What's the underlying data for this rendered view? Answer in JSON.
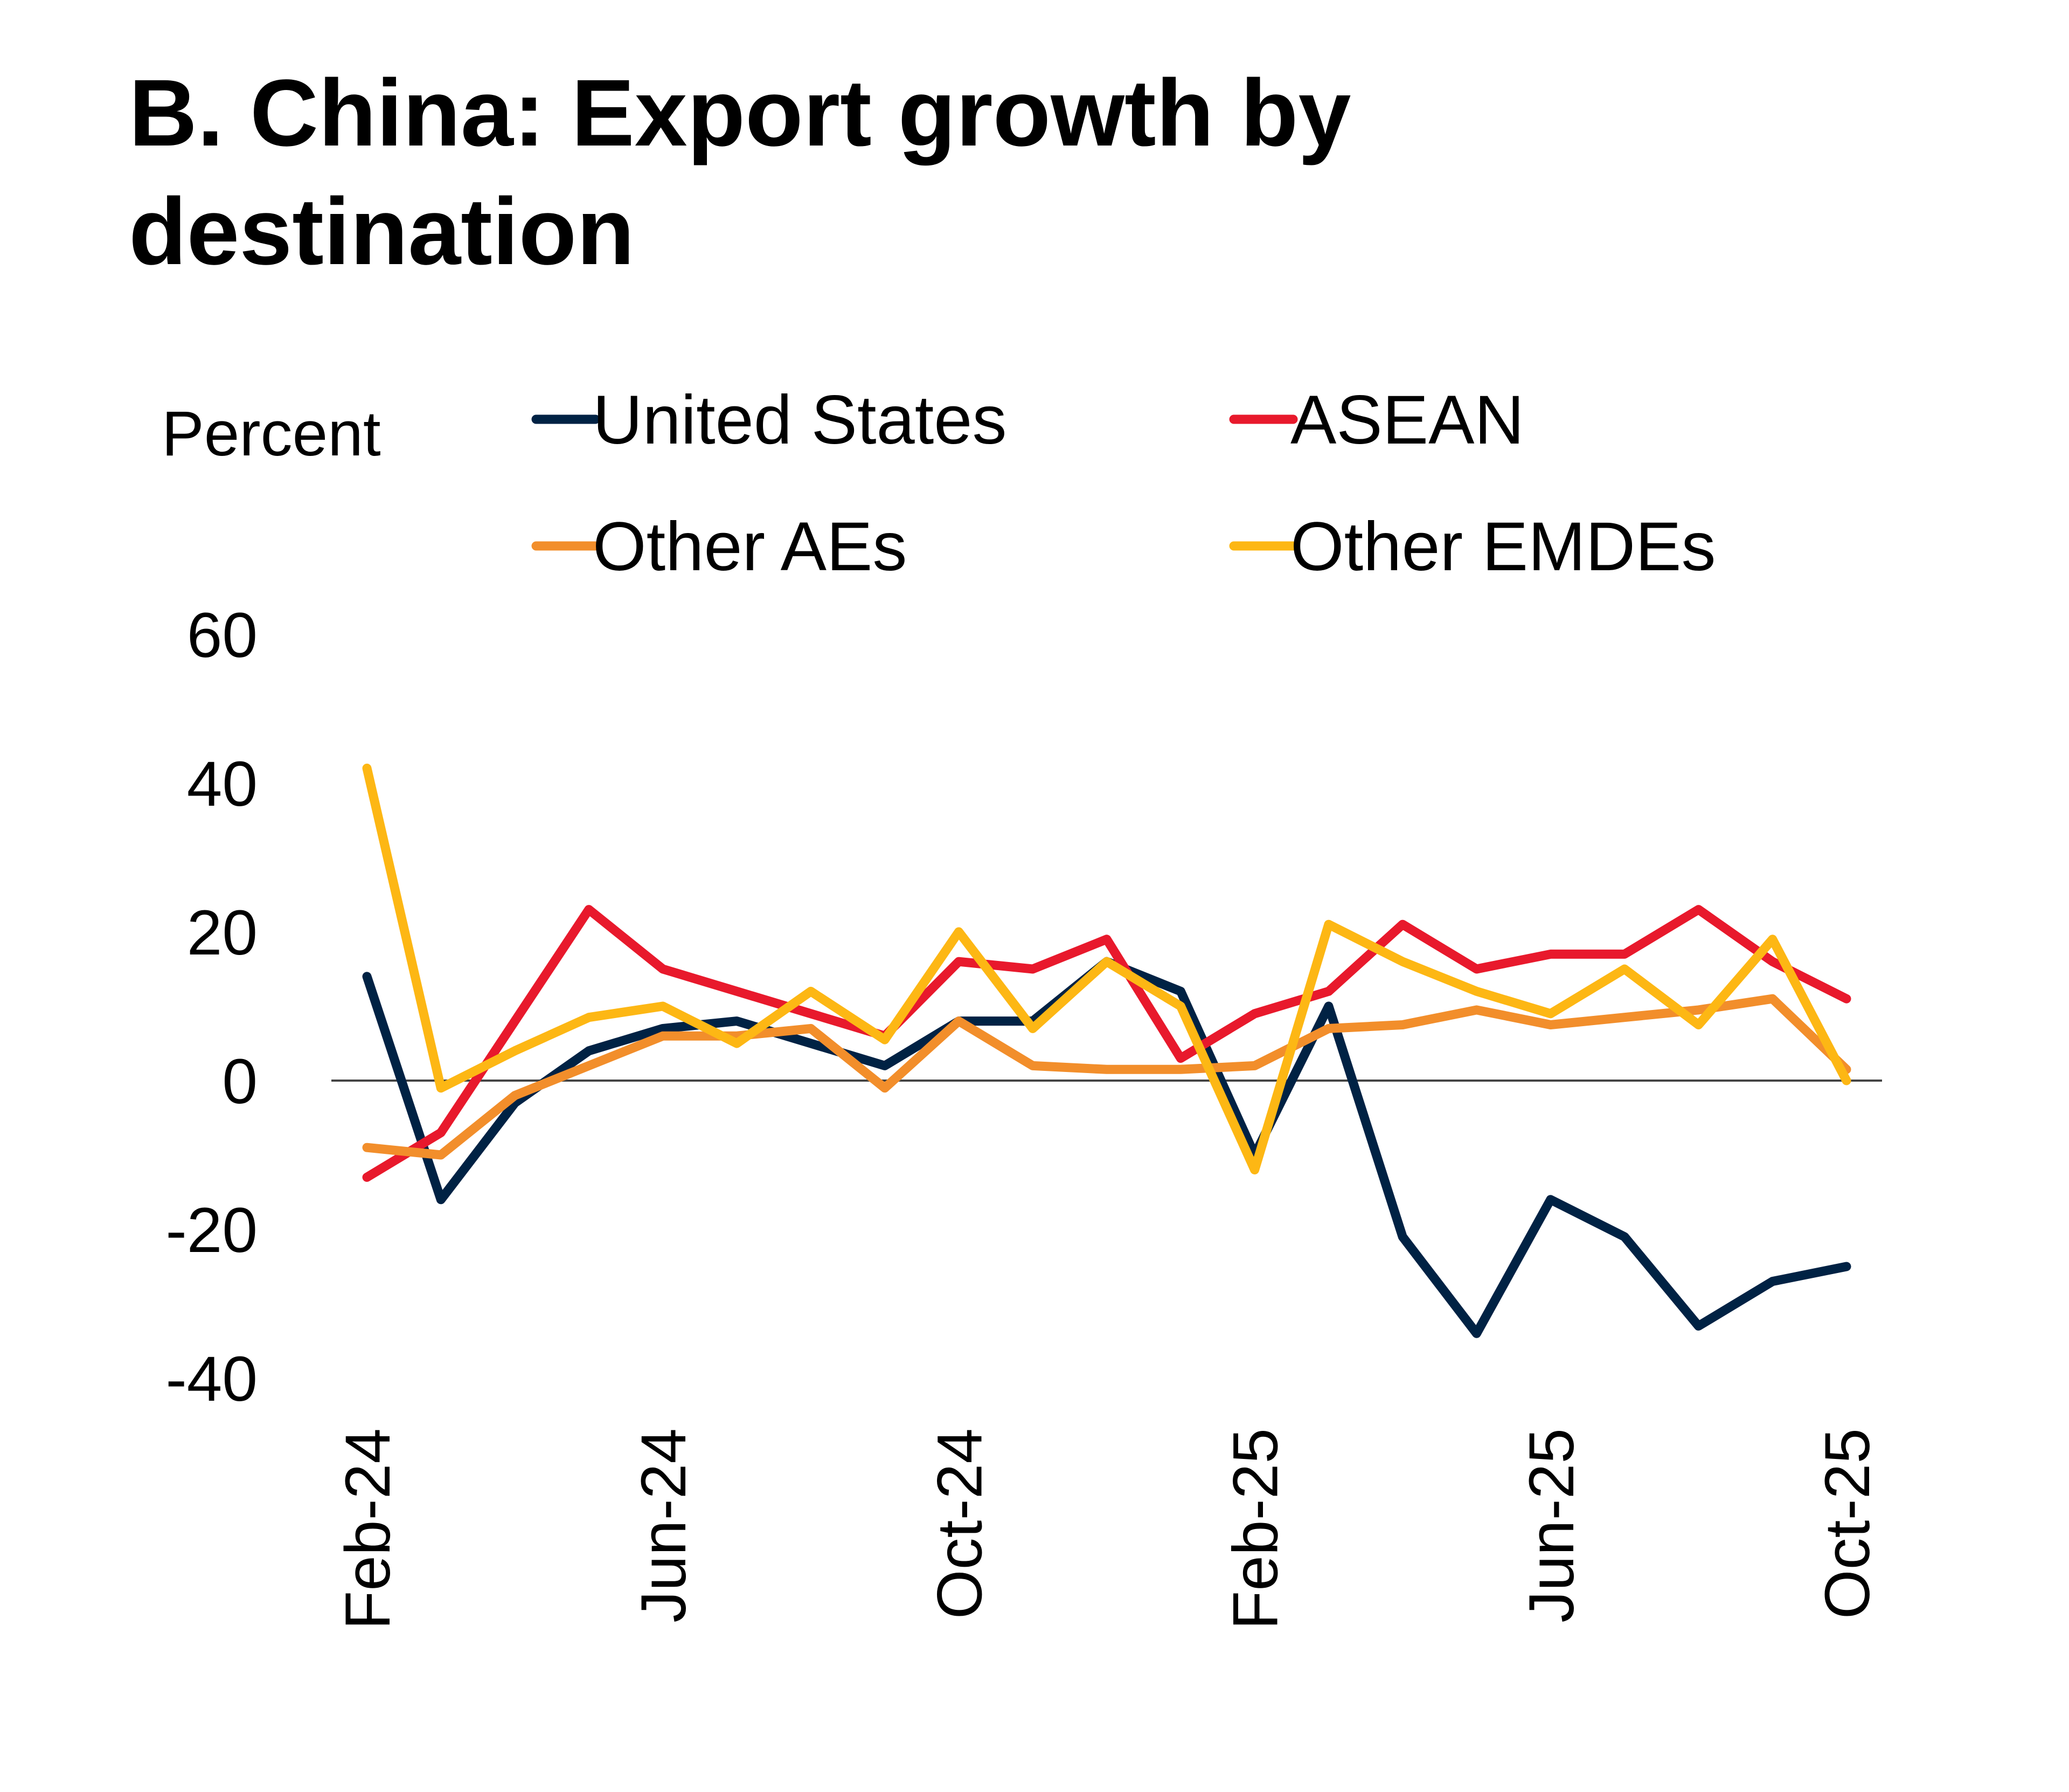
{
  "chart_data": {
    "type": "line",
    "title": "B. China: Export growth by destination",
    "ylabel": "Percent",
    "xlabel": "",
    "ylim": [
      -40,
      60
    ],
    "yticks": [
      60,
      40,
      20,
      0,
      -20,
      -40
    ],
    "x": [
      "Feb-24",
      "Mar-24",
      "Apr-24",
      "May-24",
      "Jun-24",
      "Jul-24",
      "Aug-24",
      "Sep-24",
      "Oct-24",
      "Nov-24",
      "Dec-24",
      "Jan-25",
      "Feb-25",
      "Mar-25",
      "Apr-25",
      "May-25",
      "Jun-25",
      "Jul-25",
      "Aug-25",
      "Sep-25",
      "Oct-25"
    ],
    "xtick_labels": [
      "Feb-24",
      "Jun-24",
      "Oct-24",
      "Feb-25",
      "Jun-25",
      "Oct-25"
    ],
    "grid": false,
    "legend_position": "top",
    "series": [
      {
        "name": "United States",
        "color": "#002244",
        "values": [
          14,
          -16,
          -3,
          4,
          7,
          8,
          5,
          2,
          8,
          8,
          16,
          12,
          -10,
          10,
          -21,
          -34,
          -16,
          -21,
          -33,
          -27,
          -25
        ]
      },
      {
        "name": "ASEAN",
        "color": "#E8192C",
        "values": [
          -13,
          -7,
          8,
          23,
          15,
          12,
          9,
          6,
          16,
          15,
          19,
          3,
          9,
          12,
          21,
          15,
          17,
          17,
          23,
          16,
          11
        ]
      },
      {
        "name": "Other AEs",
        "color": "#F28E2B",
        "values": [
          -9,
          -10,
          -2,
          2,
          6,
          6,
          7,
          -1,
          8,
          2,
          1.5,
          1.5,
          2,
          7,
          7.5,
          9.5,
          7.5,
          8.5,
          9.5,
          11,
          1.5
        ]
      },
      {
        "name": "Other EMDEs",
        "color": "#FDB714",
        "values": [
          42,
          -1,
          4,
          8.5,
          10,
          5,
          12,
          5.5,
          20,
          7,
          16,
          10,
          -12,
          21,
          16,
          12,
          9,
          15,
          7.5,
          19,
          0
        ]
      }
    ]
  }
}
